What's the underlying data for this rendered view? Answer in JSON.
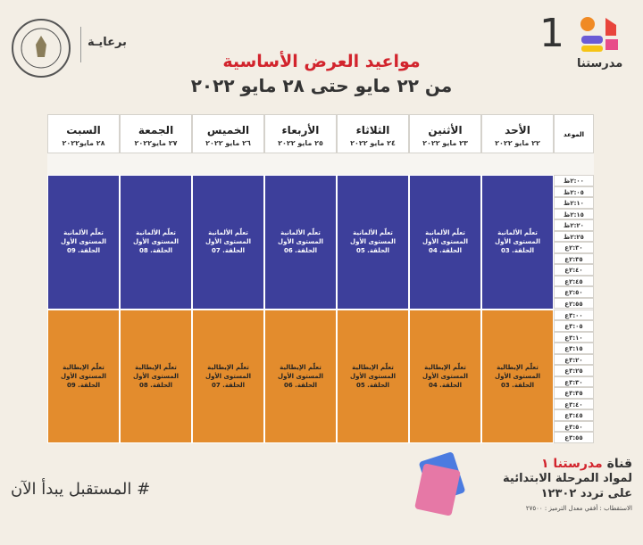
{
  "header": {
    "logo_text": "مدرستنا",
    "logo_number": "1",
    "sponsor": "برعايـة"
  },
  "title": "مواعيد العرض الأساسية",
  "subtitle": "من ٢٢ مايو حتى ٢٨ مايو ٢٠٢٢",
  "table": {
    "time_header": "الموعد",
    "days": [
      {
        "name": "الأحد",
        "date": "٢٢ مايو ٢٠٢٢"
      },
      {
        "name": "الأثنين",
        "date": "٢٣ مايو ٢٠٢٢"
      },
      {
        "name": "الثلاثاء",
        "date": "٢٤ مايو ٢٠٢٢"
      },
      {
        "name": "الأربعاء",
        "date": "٢٥ مايو ٢٠٢٢"
      },
      {
        "name": "الخميس",
        "date": "٢٦ مايو ٢٠٢٢"
      },
      {
        "name": "الجمعة",
        "date": "٢٧ مايو٢٠٢٢"
      },
      {
        "name": "السبت",
        "date": "٢٨ مايو٢٠٢٢"
      }
    ],
    "times": [
      "٢:٠٠ظ",
      "٢:٠٥ظ",
      "٢:١٠ظ",
      "٢:١٥ظ",
      "٢:٢٠ظ",
      "٢:٢٥ظ",
      "٢:٣٠ع",
      "٢:٣٥ع",
      "٢:٤٠ع",
      "٢:٤٥ع",
      "٢:٥٠ع",
      "٢:٥٥ع",
      "٣:٠٠ع",
      "٣:٠٥ع",
      "٣:١٠ع",
      "٣:١٥ع",
      "٣:٢٠ع",
      "٣:٢٥ع",
      "٣:٣٠ع",
      "٣:٣٥ع",
      "٣:٤٠ع",
      "٣:٤٥ع",
      "٣:٥٠ع",
      "٣:٥٥ع"
    ],
    "blocks": [
      {
        "color": "#3d3f9b",
        "cells": [
          [
            "تعلّم الألمانية",
            "المستوى الأول",
            "الحلقة. 03"
          ],
          [
            "تعلّم الألمانية",
            "المستوى الأول",
            "الحلقة. 04"
          ],
          [
            "تعلّم الألمانية",
            "المستوى الأول",
            "الحلقة. 05"
          ],
          [
            "تعلّم الألمانية",
            "المستوى الأول",
            "الحلقة. 06"
          ],
          [
            "تعلّم الألمانية",
            "المستوى الأول",
            "الحلقة. 07"
          ],
          [
            "تعلّم الألمانية",
            "المستوى الأول",
            "الحلقة. 08"
          ],
          [
            "تعلّم الألمانية",
            "المستوى الأول",
            "الحلقة. 09"
          ]
        ]
      },
      {
        "color": "#e38c2d",
        "cells": [
          [
            "تعلّم الإيطالية",
            "المستوى الأول",
            "الحلقة. 03"
          ],
          [
            "تعلّم الإيطالية",
            "المستوى الأول",
            "الحلقة. 04"
          ],
          [
            "تعلّم الإيطالية",
            "المستوى الأول",
            "الحلقة. 05"
          ],
          [
            "تعلّم الإيطالية",
            "المستوى الأول",
            "الحلقة. 06"
          ],
          [
            "تعلّم الإيطالية",
            "المستوى الأول",
            "الحلقة. 07"
          ],
          [
            "تعلّم الإيطالية",
            "المستوى الأول",
            "الحلقة. 08"
          ],
          [
            "تعلّم الإيطالية",
            "المستوى الأول",
            "الحلقة. 09"
          ]
        ]
      }
    ]
  },
  "footer": {
    "hashtag": "# المستقبل يبدأ الآن",
    "channel_prefix": "قناة",
    "channel_name": "مدرستنا ١",
    "line2": "لمواد المرحلة الابتدائية",
    "line3": "على تردد ١٢٣٠٢",
    "line4": "الاستقطاب : أفقي معدل الترميز : ٢٧٥٠٠"
  }
}
